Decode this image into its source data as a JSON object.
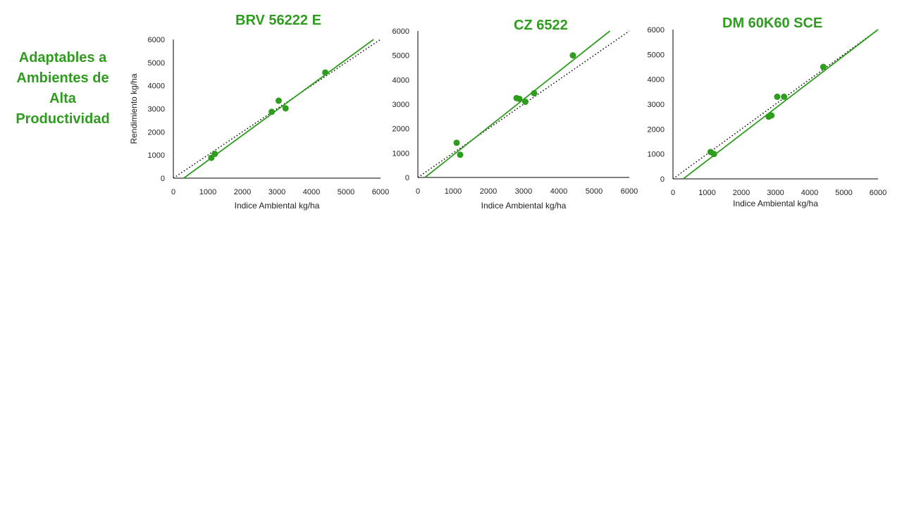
{
  "side_title": "Adaptables a Ambientes de Alta Productividad",
  "colors": {
    "accent": "#2e9c1e",
    "point": "#2e9c1e",
    "ref_line": "#000000"
  },
  "chart_data": [
    {
      "type": "scatter",
      "title": "BRV 56222  E",
      "xlabel": "Indice Ambiental kg/ha",
      "ylabel": "Rendimiento kg/ha",
      "xlim": [
        0,
        6000
      ],
      "ylim": [
        0,
        6000
      ],
      "xticks": [
        0,
        1000,
        2000,
        3000,
        4000,
        5000,
        6000
      ],
      "yticks": [
        0,
        1000,
        2000,
        3000,
        4000,
        5000,
        6000
      ],
      "points": [
        [
          1100,
          880
        ],
        [
          1200,
          1050
        ],
        [
          2850,
          2870
        ],
        [
          3050,
          3350
        ],
        [
          3250,
          3020
        ],
        [
          4400,
          4570
        ]
      ],
      "fit_line": [
        [
          300,
          0
        ],
        [
          5800,
          6000
        ]
      ],
      "reference_line": [
        [
          0,
          0
        ],
        [
          6000,
          6000
        ]
      ]
    },
    {
      "type": "scatter",
      "title": "CZ 6522",
      "xlabel": "Indice Ambiental kg/ha",
      "ylabel": "",
      "xlim": [
        0,
        6000
      ],
      "ylim": [
        0,
        6000
      ],
      "xticks": [
        0,
        1000,
        2000,
        3000,
        4000,
        5000,
        6000
      ],
      "yticks": [
        0,
        1000,
        2000,
        3000,
        4000,
        5000,
        6000
      ],
      "points": [
        [
          1100,
          1420
        ],
        [
          1200,
          930
        ],
        [
          2800,
          3250
        ],
        [
          2880,
          3220
        ],
        [
          3050,
          3100
        ],
        [
          3300,
          3450
        ],
        [
          4400,
          5000
        ]
      ],
      "fit_line": [
        [
          200,
          0
        ],
        [
          5450,
          6000
        ]
      ],
      "reference_line": [
        [
          0,
          0
        ],
        [
          6000,
          6000
        ]
      ]
    },
    {
      "type": "scatter",
      "title": "DM 60K60 SCE",
      "xlabel": "Indice Ambiental kg/ha",
      "ylabel": "",
      "xlim": [
        0,
        6000
      ],
      "ylim": [
        0,
        6000
      ],
      "xticks": [
        0,
        1000,
        2000,
        3000,
        4000,
        5000,
        6000
      ],
      "yticks": [
        0,
        1000,
        2000,
        3000,
        4000,
        5000,
        6000
      ],
      "points": [
        [
          1100,
          1080
        ],
        [
          1200,
          1000
        ],
        [
          2800,
          2500
        ],
        [
          2880,
          2550
        ],
        [
          3050,
          3300
        ],
        [
          3250,
          3300
        ],
        [
          4400,
          4500
        ]
      ],
      "fit_line": [
        [
          300,
          0
        ],
        [
          6000,
          6000
        ]
      ],
      "reference_line": [
        [
          0,
          0
        ],
        [
          6000,
          6000
        ]
      ]
    }
  ]
}
